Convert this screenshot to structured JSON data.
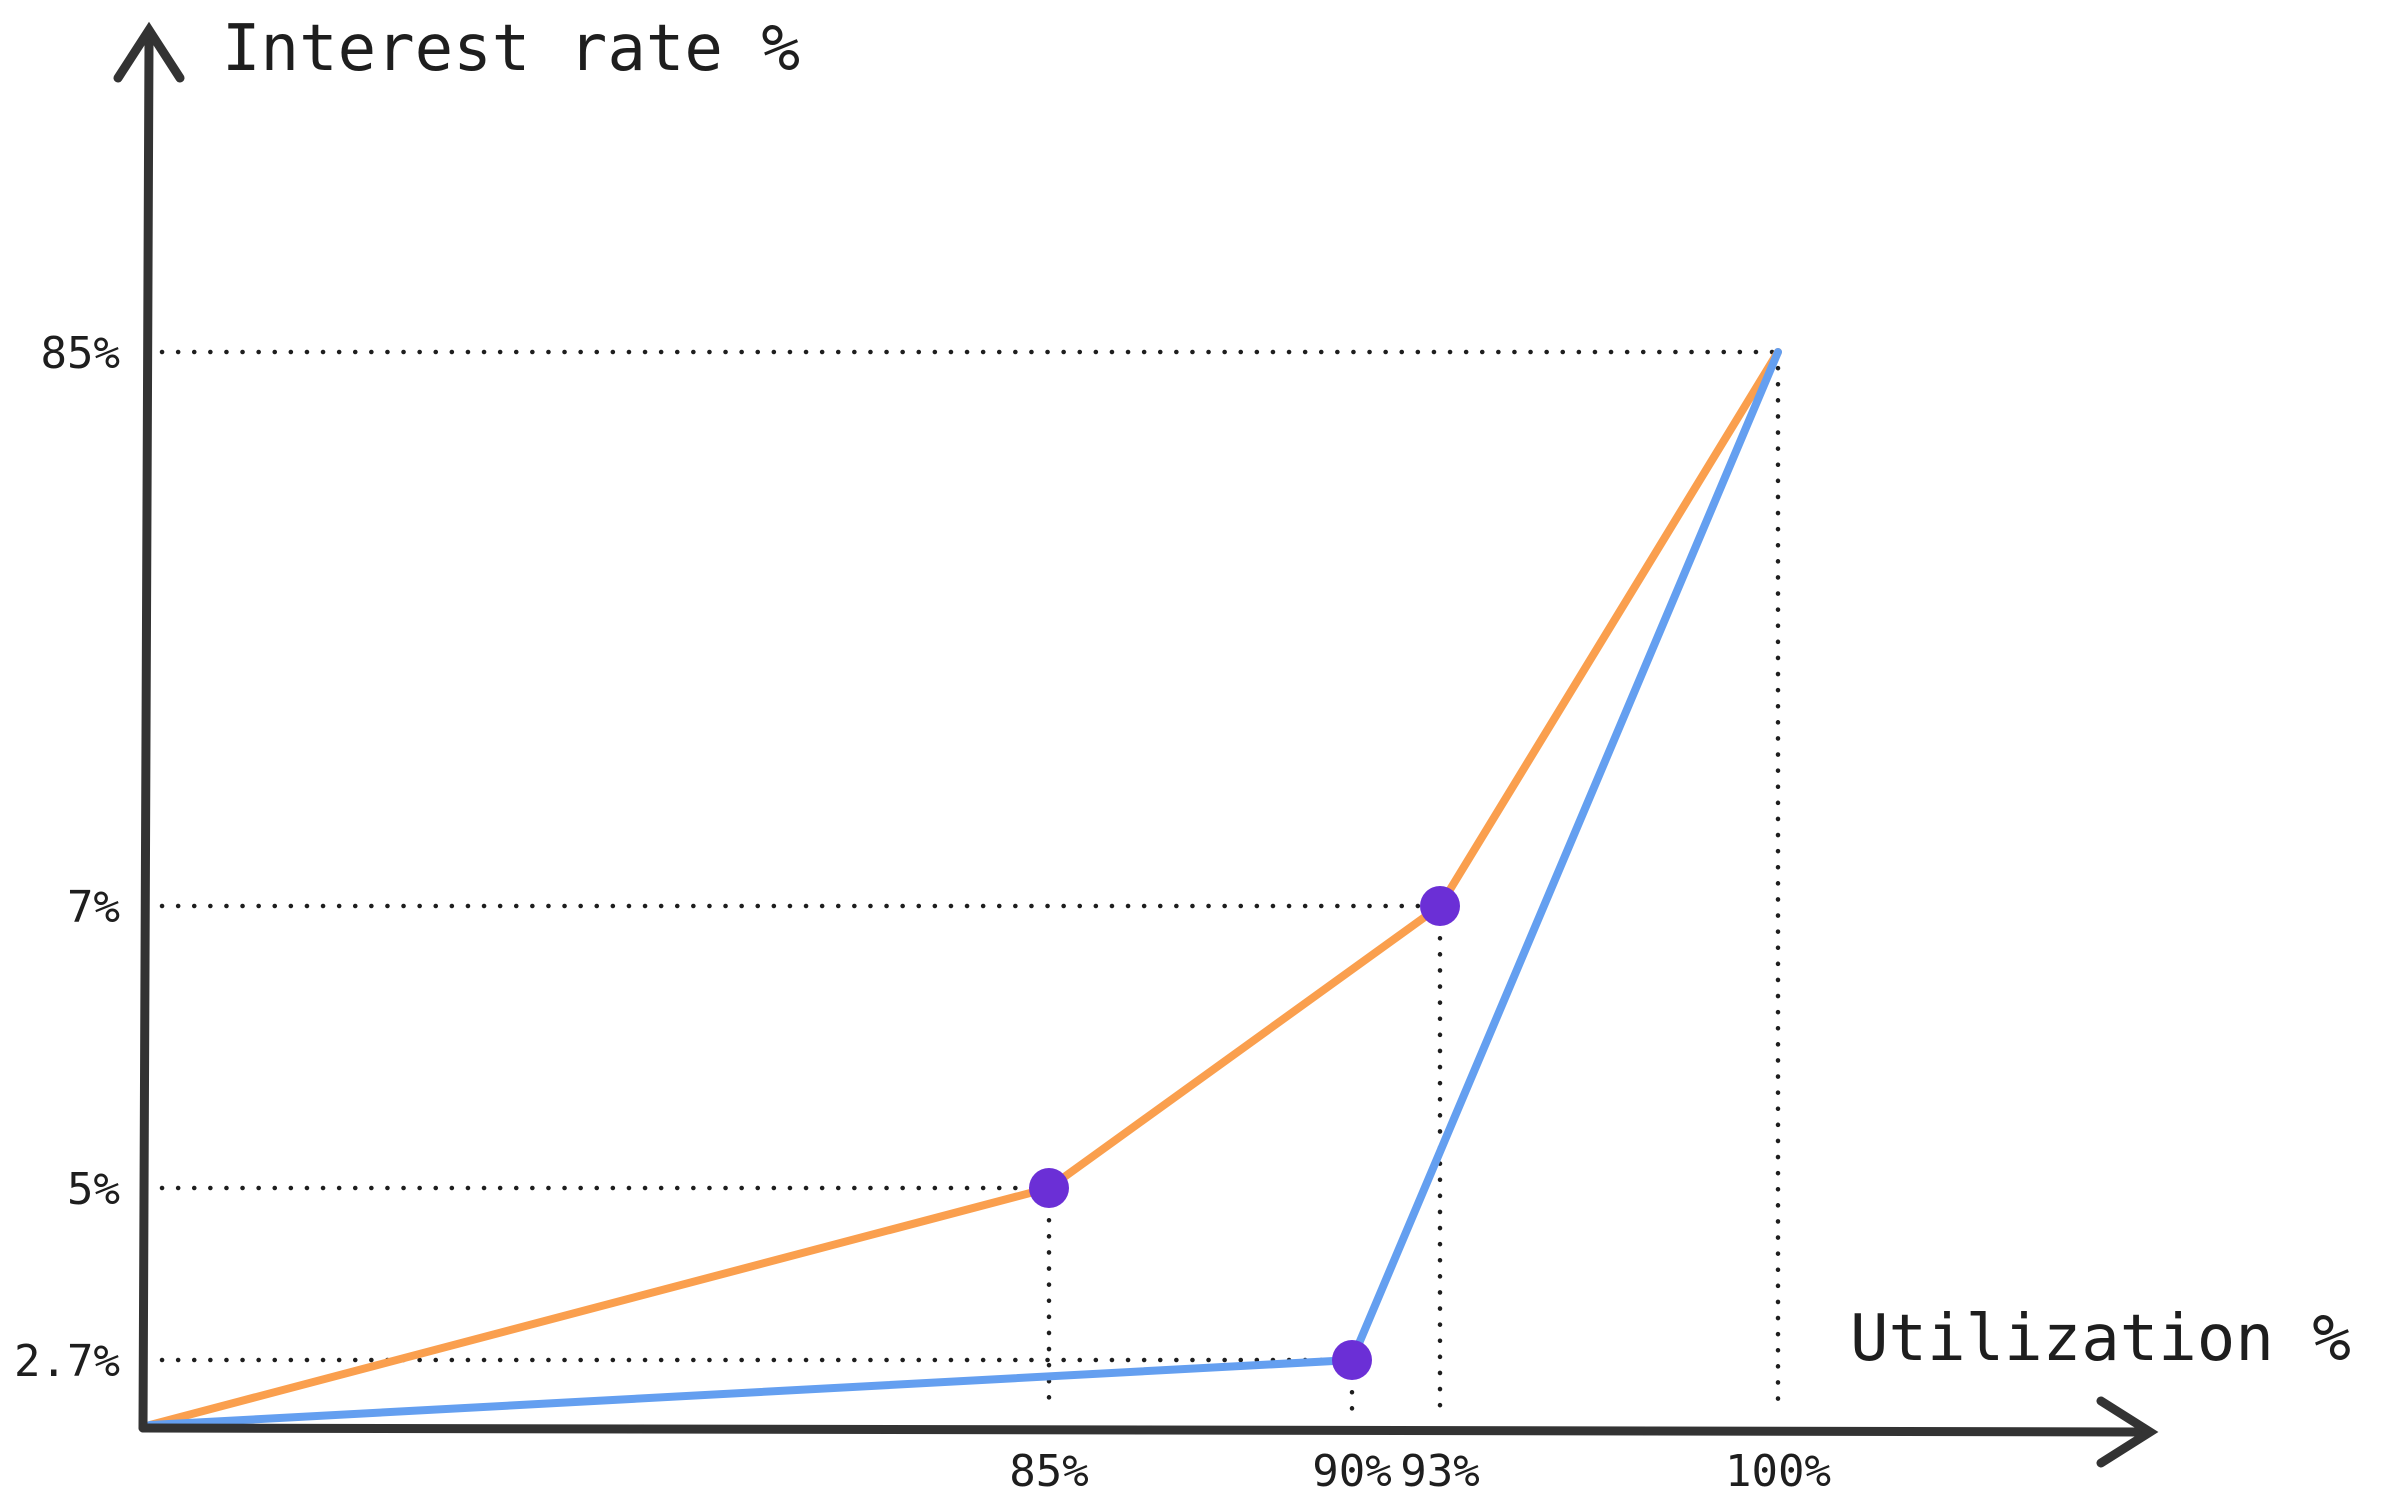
{
  "chart_data": {
    "type": "line",
    "ylabel": "Interest rate %",
    "xlabel": "Utilization %",
    "x_ticks": [
      {
        "value": 85,
        "label": "85%"
      },
      {
        "value": 90,
        "label": "90%"
      },
      {
        "value": 93,
        "label": "93%"
      },
      {
        "value": 100,
        "label": "100%"
      }
    ],
    "y_ticks": [
      {
        "value": 2.7,
        "label": "2.7%"
      },
      {
        "value": 5,
        "label": "5%"
      },
      {
        "value": 7,
        "label": "7%"
      },
      {
        "value": 85,
        "label": "85%"
      }
    ],
    "series": [
      {
        "color": "#fa9f4e",
        "points": [
          {
            "x": 0,
            "y": 0
          },
          {
            "x": 85,
            "y": 5,
            "kink": true
          },
          {
            "x": 93,
            "y": 7,
            "kink": true
          },
          {
            "x": 100,
            "y": 85
          }
        ]
      },
      {
        "color": "#649ff0",
        "points": [
          {
            "x": 0,
            "y": 0
          },
          {
            "x": 90,
            "y": 2.7,
            "kink": true
          },
          {
            "x": 100,
            "y": 85
          }
        ]
      }
    ],
    "kink_color": "#6b2fd6",
    "axis_color": "#333333",
    "guide_color": "#1e1e1e",
    "grid": false,
    "legend": "none",
    "scale": "non-linear (schematic)"
  }
}
